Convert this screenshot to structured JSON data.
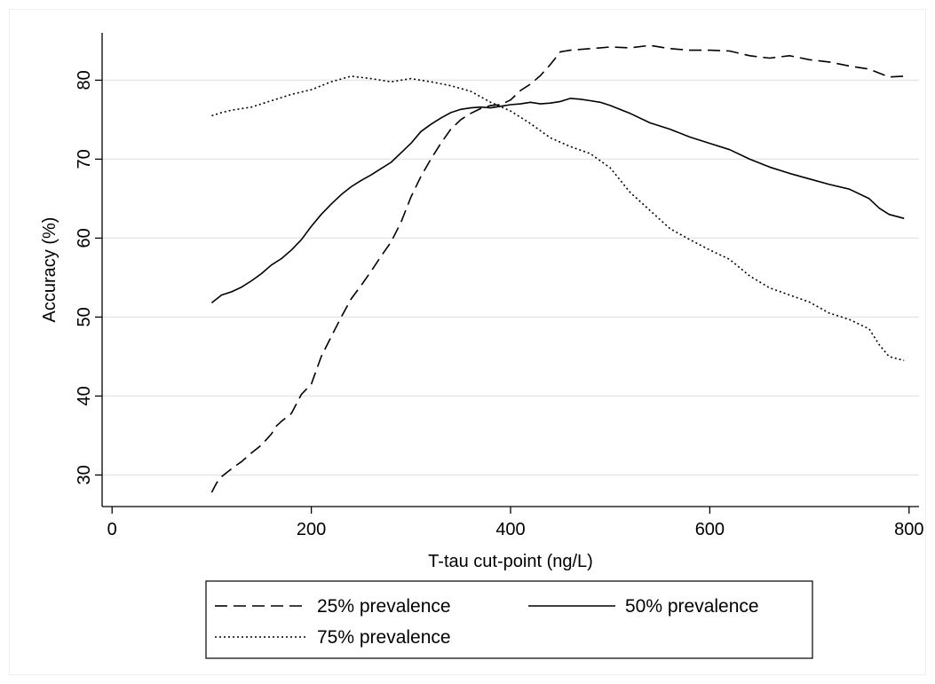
{
  "chart_data": {
    "type": "line",
    "xlabel": "T-tau cut-point (ng/L)",
    "ylabel": "Accuracy (%)",
    "xlim": [
      -10,
      810
    ],
    "ylim": [
      26,
      86
    ],
    "x_ticks": [
      0,
      200,
      400,
      600,
      800
    ],
    "y_ticks": [
      30,
      40,
      50,
      60,
      70,
      80
    ],
    "grid": "horizontal",
    "legend_position": "bottom",
    "series": [
      {
        "name": "25% prevalence",
        "dash": "dashed",
        "x": [
          100,
          105,
          110,
          120,
          130,
          140,
          150,
          160,
          165,
          170,
          180,
          190,
          200,
          210,
          220,
          230,
          240,
          250,
          260,
          270,
          280,
          290,
          300,
          310,
          320,
          330,
          340,
          350,
          360,
          370,
          380,
          390,
          400,
          410,
          420,
          430,
          440,
          450,
          460,
          470,
          480,
          490,
          500,
          520,
          540,
          560,
          580,
          600,
          620,
          640,
          660,
          680,
          700,
          720,
          740,
          760,
          780,
          795
        ],
        "y": [
          27.8,
          29.0,
          29.8,
          30.8,
          31.7,
          32.8,
          33.8,
          35.2,
          36.2,
          36.8,
          37.8,
          40.2,
          41.5,
          45.0,
          47.5,
          50.0,
          52.3,
          54.0,
          55.8,
          57.7,
          59.5,
          62.0,
          65.2,
          67.8,
          70.0,
          72.0,
          73.8,
          75.0,
          75.8,
          76.4,
          76.8,
          76.9,
          77.5,
          78.7,
          79.5,
          80.6,
          82.0,
          83.6,
          83.8,
          83.9,
          84.0,
          84.1,
          84.2,
          84.1,
          84.4,
          84.0,
          83.8,
          83.8,
          83.7,
          83.1,
          82.8,
          83.1,
          82.6,
          82.3,
          81.8,
          81.4,
          80.4,
          80.5
        ]
      },
      {
        "name": "50% prevalence",
        "dash": "solid",
        "x": [
          100,
          110,
          120,
          130,
          140,
          150,
          160,
          170,
          180,
          190,
          200,
          210,
          220,
          230,
          240,
          250,
          260,
          270,
          280,
          290,
          300,
          310,
          320,
          330,
          340,
          350,
          360,
          370,
          380,
          390,
          400,
          410,
          420,
          430,
          440,
          450,
          460,
          470,
          480,
          490,
          500,
          520,
          540,
          560,
          580,
          600,
          620,
          640,
          660,
          680,
          700,
          720,
          740,
          760,
          770,
          780,
          795
        ],
        "y": [
          51.8,
          52.8,
          53.2,
          53.8,
          54.6,
          55.5,
          56.6,
          57.4,
          58.5,
          59.8,
          61.5,
          63.0,
          64.3,
          65.5,
          66.5,
          67.3,
          68.0,
          68.8,
          69.6,
          70.8,
          72.0,
          73.5,
          74.4,
          75.2,
          75.9,
          76.3,
          76.5,
          76.6,
          76.5,
          76.7,
          76.9,
          77.0,
          77.2,
          77.0,
          77.1,
          77.3,
          77.7,
          77.6,
          77.4,
          77.2,
          76.8,
          75.8,
          74.6,
          73.8,
          72.8,
          72.0,
          71.2,
          70.0,
          69.0,
          68.2,
          67.5,
          66.8,
          66.2,
          65.0,
          63.8,
          63.0,
          62.5
        ]
      },
      {
        "name": "75% prevalence",
        "dash": "dotted",
        "x": [
          100,
          110,
          120,
          140,
          160,
          180,
          200,
          220,
          240,
          260,
          280,
          300,
          320,
          340,
          360,
          380,
          400,
          420,
          440,
          460,
          480,
          500,
          520,
          540,
          560,
          580,
          600,
          620,
          640,
          660,
          680,
          700,
          720,
          740,
          760,
          770,
          780,
          795
        ],
        "y": [
          75.5,
          75.9,
          76.2,
          76.6,
          77.4,
          78.2,
          78.8,
          79.8,
          80.5,
          80.2,
          79.8,
          80.2,
          79.8,
          79.3,
          78.6,
          77.2,
          76.1,
          74.5,
          72.7,
          71.6,
          70.7,
          68.9,
          65.8,
          63.5,
          61.2,
          59.8,
          58.5,
          57.3,
          55.2,
          53.7,
          52.8,
          51.9,
          50.5,
          49.7,
          48.5,
          46.5,
          45.0,
          44.5
        ]
      }
    ]
  }
}
